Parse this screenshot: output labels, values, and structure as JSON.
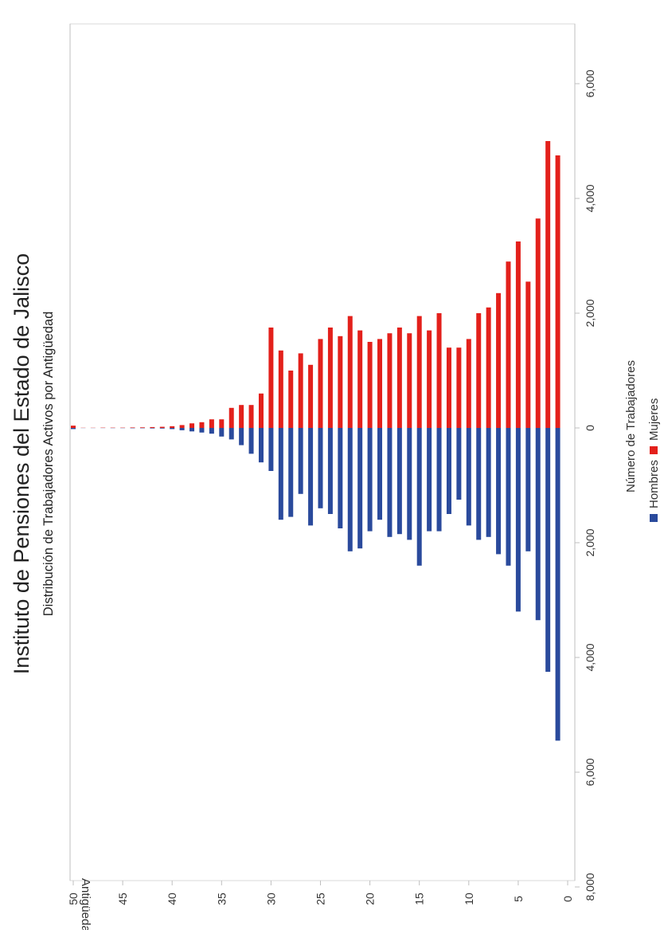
{
  "chart_data": {
    "type": "bar",
    "orientation": "horizontal-butterfly",
    "rotation": "image rotated 90 degrees counter-clockwise",
    "title": "Instituto de Pensiones del Estado de Jalisco",
    "subtitle": "Distribución de Trabajadores Activos por Antigüedad",
    "xlabel": "Número de Trabajadores",
    "ylabel": "Antigüedad",
    "xlim": [
      -8000,
      8000
    ],
    "ylim": [
      0,
      50
    ],
    "xticks": [
      -8000,
      -6000,
      -4000,
      -2000,
      0,
      2000,
      4000,
      6000,
      8000
    ],
    "xtick_labels": [
      "8,000",
      "6,000",
      "4,000",
      "2,000",
      "0",
      "2,000",
      "4,000",
      "6,000",
      "8,000"
    ],
    "yticks": [
      0,
      5,
      10,
      15,
      20,
      25,
      30,
      35,
      40,
      45,
      50
    ],
    "ytick_labels": [
      "0",
      "5",
      "10",
      "15",
      "20",
      "25",
      "30",
      "35",
      "40",
      "45",
      "50"
    ],
    "grid": false,
    "legend": "bottom",
    "categories": [
      1,
      2,
      3,
      4,
      5,
      6,
      7,
      8,
      9,
      10,
      11,
      12,
      13,
      14,
      15,
      16,
      17,
      18,
      19,
      20,
      21,
      22,
      23,
      24,
      25,
      26,
      27,
      28,
      29,
      30,
      31,
      32,
      33,
      34,
      35,
      36,
      37,
      38,
      39,
      40,
      41,
      42,
      43,
      44,
      45,
      46,
      47,
      48,
      49,
      50
    ],
    "series": [
      {
        "name": "Hombres",
        "color": "#2a4a9c",
        "values": [
          5450,
          4250,
          3350,
          2150,
          3200,
          2400,
          2200,
          1900,
          1950,
          1700,
          1250,
          1500,
          1800,
          1800,
          2400,
          1950,
          1850,
          1900,
          1600,
          1800,
          2100,
          2150,
          1750,
          1500,
          1400,
          1700,
          1150,
          1550,
          1600,
          750,
          600,
          450,
          300,
          200,
          150,
          100,
          80,
          60,
          40,
          20,
          10,
          8,
          5,
          5,
          3,
          3,
          2,
          2,
          2,
          20
        ]
      },
      {
        "name": "Mujeres",
        "color": "#e3201b",
        "values": [
          4750,
          5000,
          3650,
          2550,
          3250,
          2900,
          2350,
          2100,
          2000,
          1550,
          1400,
          1400,
          2000,
          1700,
          1950,
          1650,
          1750,
          1650,
          1550,
          1500,
          1700,
          1950,
          1600,
          1750,
          1550,
          1100,
          1300,
          1000,
          1350,
          1750,
          600,
          400,
          400,
          350,
          150,
          150,
          100,
          80,
          50,
          30,
          20,
          15,
          10,
          8,
          5,
          5,
          5,
          3,
          3,
          40
        ]
      }
    ]
  }
}
